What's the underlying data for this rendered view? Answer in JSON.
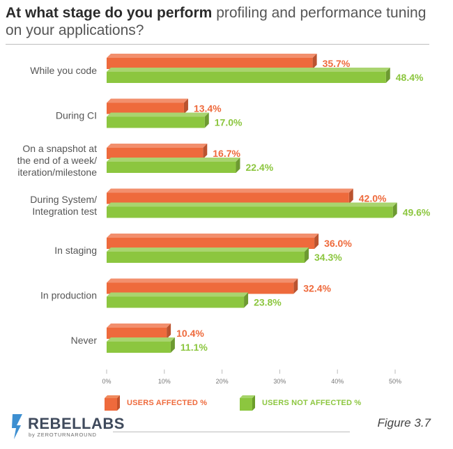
{
  "title": {
    "bold": "At what stage do you perform",
    "rest": "profiling and performance tuning on your applications?"
  },
  "chart_data": {
    "type": "bar",
    "orientation": "horizontal",
    "categories": [
      [
        "While you code"
      ],
      [
        "During CI"
      ],
      [
        "On a snapshot at",
        "the end of a week/",
        "iteration/milestone"
      ],
      [
        "During System/",
        "Integration test"
      ],
      [
        "In staging"
      ],
      [
        "In production"
      ],
      [
        "Never"
      ]
    ],
    "series": [
      {
        "name": "USERS AFFECTED %",
        "color": "#ee6a3c",
        "values": [
          35.7,
          13.4,
          16.7,
          42.0,
          36.0,
          32.4,
          10.4
        ],
        "labels": [
          "35.7%",
          "13.4%",
          "16.7%",
          "42.0%",
          "36.0%",
          "32.4%",
          "10.4%"
        ]
      },
      {
        "name": "USERS NOT AFFECTED %",
        "color": "#8cc63f",
        "values": [
          48.4,
          17.0,
          22.4,
          49.6,
          34.3,
          23.8,
          11.1
        ],
        "labels": [
          "48.4%",
          "17.0%",
          "22.4%",
          "49.6%",
          "34.3%",
          "23.8%",
          "11.1%"
        ]
      }
    ],
    "xlim": [
      0,
      50
    ],
    "xticks": [
      "0%",
      "10%",
      "20%",
      "30%",
      "40%",
      "50%"
    ],
    "legend_position": "bottom-left",
    "grid": false
  },
  "legend": {
    "affected_label": "USERS AFFECTED %",
    "not_affected_label": "USERS NOT AFFECTED %"
  },
  "footer": {
    "logo_text": "REBELLABS",
    "logo_subtext": "by ZEROTURNAROUND",
    "figure_label": "Figure 3.7"
  }
}
